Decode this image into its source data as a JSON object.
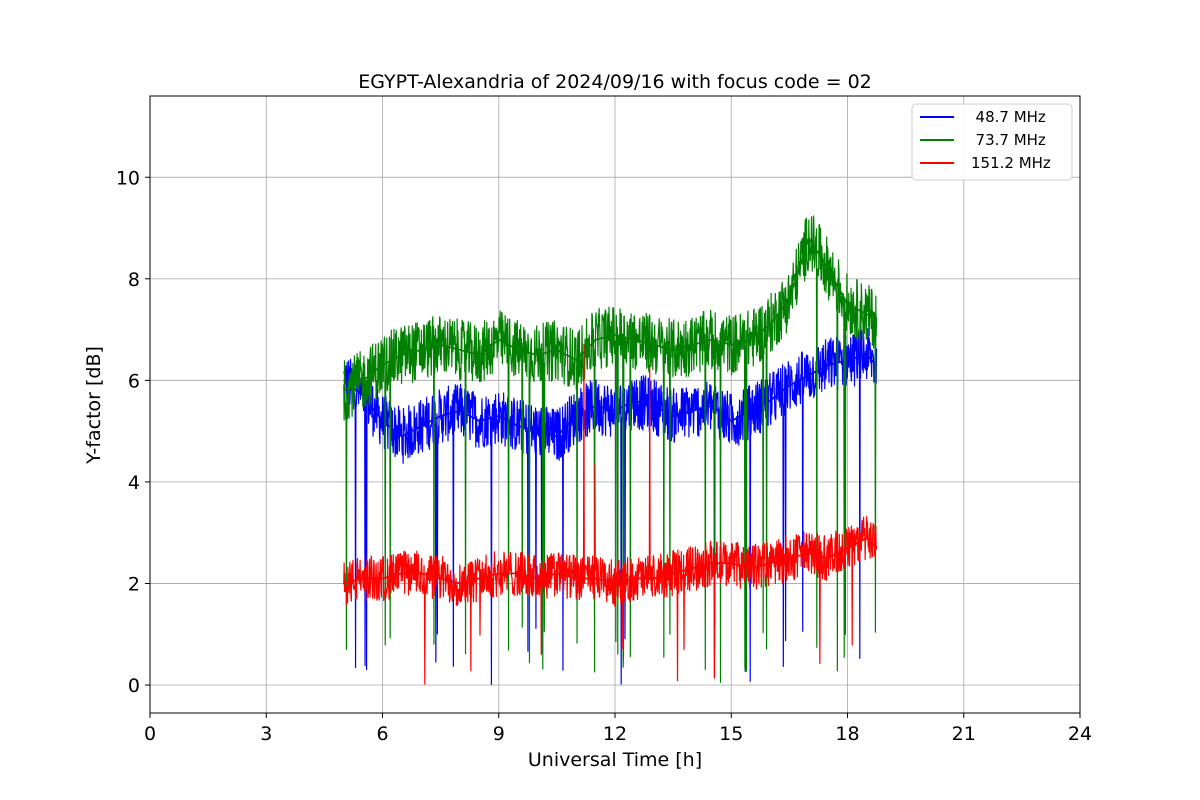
{
  "chart_data": {
    "type": "line",
    "title": "EGYPT-Alexandria of 2024/09/16 with focus code = 02",
    "xlabel": "Universal Time [h]",
    "ylabel": "Y-factor [dB]",
    "xlim": [
      0,
      24
    ],
    "ylim": [
      -0.55,
      11.6
    ],
    "xticks": [
      0,
      3,
      6,
      9,
      12,
      15,
      18,
      21,
      24
    ],
    "yticks": [
      0,
      2,
      4,
      6,
      8,
      10
    ],
    "grid": true,
    "legend_position": "top-right",
    "series": [
      {
        "name": "  48.7 MHz",
        "color": "#0000ff",
        "x": [
          5.0,
          5.5,
          6.0,
          6.5,
          7.0,
          7.5,
          8.0,
          8.5,
          9.0,
          9.5,
          10.0,
          10.5,
          11.0,
          11.5,
          12.0,
          12.5,
          13.0,
          13.5,
          14.0,
          14.5,
          15.0,
          15.5,
          16.0,
          16.5,
          17.0,
          17.5,
          18.0,
          18.5,
          18.75
        ],
        "values": [
          6.0,
          5.7,
          5.2,
          4.9,
          5.1,
          5.3,
          5.4,
          5.2,
          5.3,
          5.1,
          5.0,
          4.9,
          5.3,
          5.5,
          5.4,
          5.6,
          5.5,
          5.3,
          5.4,
          5.5,
          5.2,
          5.4,
          5.6,
          5.9,
          6.1,
          6.3,
          6.4,
          6.5,
          6.3
        ]
      },
      {
        "name": "  73.7 MHz",
        "color": "#008000",
        "x": [
          5.0,
          5.5,
          6.0,
          6.5,
          7.0,
          7.5,
          8.0,
          8.5,
          9.0,
          9.5,
          10.0,
          10.5,
          11.0,
          11.5,
          12.0,
          12.5,
          13.0,
          13.5,
          14.0,
          14.5,
          15.0,
          15.5,
          16.0,
          16.5,
          17.0,
          17.5,
          18.0,
          18.5,
          18.75
        ],
        "values": [
          5.8,
          6.0,
          6.3,
          6.5,
          6.6,
          6.7,
          6.6,
          6.5,
          6.8,
          6.6,
          6.5,
          6.6,
          6.4,
          6.8,
          6.9,
          6.8,
          6.7,
          6.6,
          6.7,
          6.8,
          6.7,
          6.8,
          7.1,
          7.6,
          8.8,
          8.2,
          7.5,
          7.3,
          7.2
        ]
      },
      {
        "name": "151.2 MHz",
        "color": "#ff0000",
        "x": [
          5.0,
          5.5,
          6.0,
          6.5,
          7.0,
          7.5,
          8.0,
          8.5,
          9.0,
          9.5,
          10.0,
          10.5,
          11.0,
          11.5,
          12.0,
          12.5,
          13.0,
          13.5,
          14.0,
          14.5,
          15.0,
          15.5,
          16.0,
          16.5,
          17.0,
          17.5,
          18.0,
          18.5,
          18.75
        ],
        "values": [
          2.0,
          2.1,
          2.1,
          2.2,
          2.2,
          2.1,
          2.0,
          2.1,
          2.2,
          2.2,
          2.1,
          2.2,
          2.1,
          2.1,
          2.0,
          2.1,
          2.1,
          2.2,
          2.3,
          2.4,
          2.4,
          2.3,
          2.4,
          2.5,
          2.6,
          2.5,
          2.7,
          2.9,
          2.7
        ]
      }
    ]
  }
}
